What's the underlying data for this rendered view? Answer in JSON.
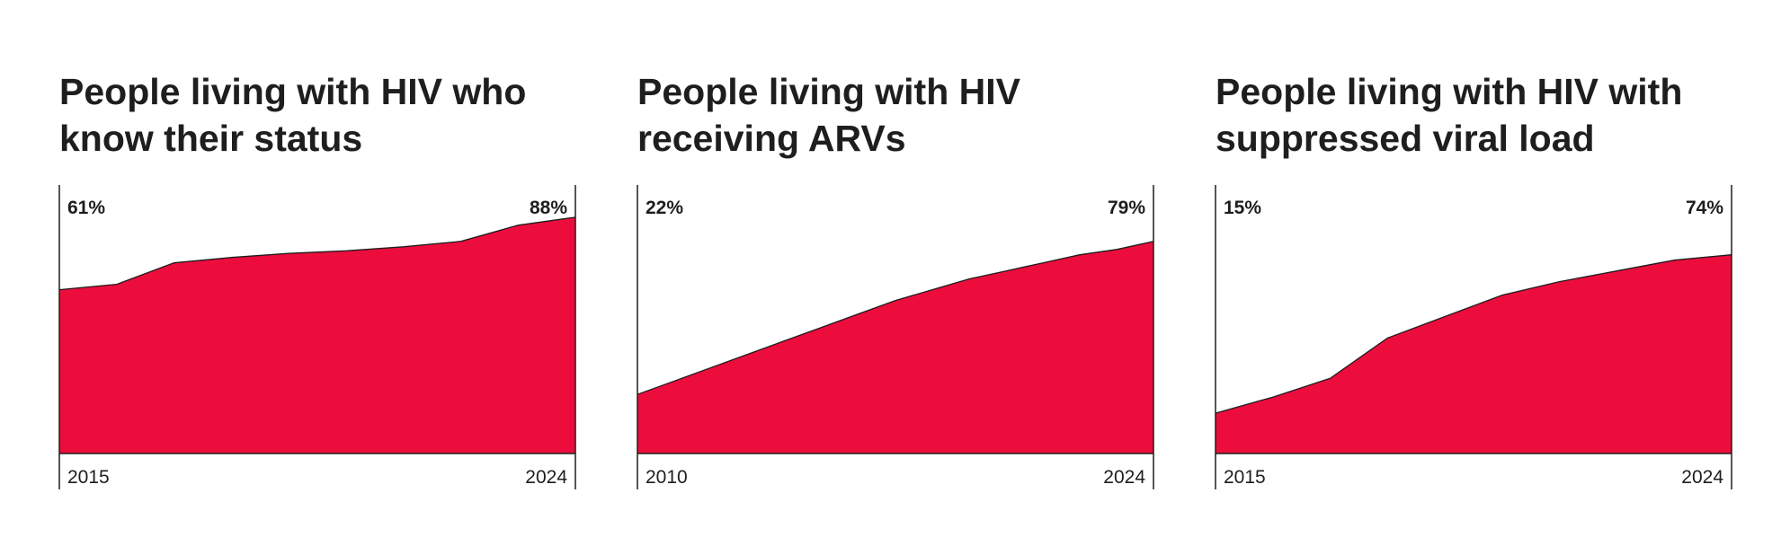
{
  "colors": {
    "area": "#ec0d3c",
    "outline": "#1e1e1e",
    "text": "#1e1e1e",
    "background": "#ffffff"
  },
  "chart_data": [
    {
      "type": "area",
      "title": "People living with HIV who know their status",
      "start_year": "2015",
      "end_year": "2024",
      "start_label": "61%",
      "end_label": "88%",
      "x": [
        2015,
        2016,
        2017,
        2018,
        2019,
        2020,
        2021,
        2022,
        2023,
        2024
      ],
      "values": [
        61,
        63,
        71,
        73,
        74.5,
        75.5,
        77,
        79,
        85,
        88
      ],
      "ylim": [
        0,
        100
      ]
    },
    {
      "type": "area",
      "title": "People living with HIV receiving ARVs",
      "start_year": "2010",
      "end_year": "2024",
      "start_label": "22%",
      "end_label": "79%",
      "x": [
        2010,
        2011,
        2012,
        2013,
        2014,
        2015,
        2016,
        2017,
        2018,
        2019,
        2020,
        2021,
        2022,
        2023,
        2024
      ],
      "values": [
        22,
        27,
        32,
        37,
        42,
        47,
        52,
        57,
        61,
        65,
        68,
        71,
        74,
        76,
        79
      ],
      "ylim": [
        0,
        100
      ]
    },
    {
      "type": "area",
      "title": "People living with HIV with suppressed viral load",
      "start_year": "2015",
      "end_year": "2024",
      "start_label": "15%",
      "end_label": "74%",
      "x": [
        2015,
        2016,
        2017,
        2018,
        2019,
        2020,
        2021,
        2022,
        2023,
        2024
      ],
      "values": [
        15,
        21,
        28,
        43,
        51,
        59,
        64,
        68,
        72,
        74
      ],
      "ylim": [
        0,
        100
      ]
    }
  ]
}
